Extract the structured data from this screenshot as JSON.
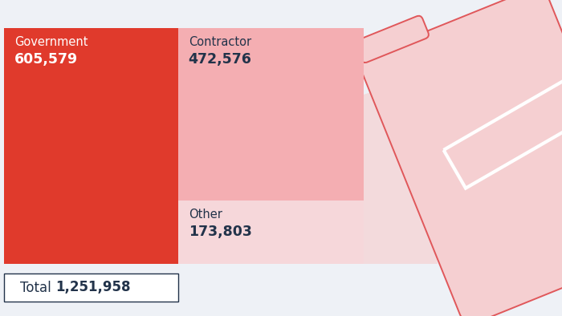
{
  "chart_data": {
    "type": "treemap",
    "tick_labels": false,
    "categories": [
      "Government",
      "Contractor",
      "Other"
    ],
    "values": [
      605579,
      472576,
      173803
    ],
    "value_labels": [
      "605,579",
      "472,576",
      "173,803"
    ],
    "colors": [
      "#e03a2c",
      "#f4aeb2",
      "#f6d7da"
    ],
    "total": {
      "label": "Total",
      "value": 1251958,
      "value_label": "1,251,958"
    }
  }
}
